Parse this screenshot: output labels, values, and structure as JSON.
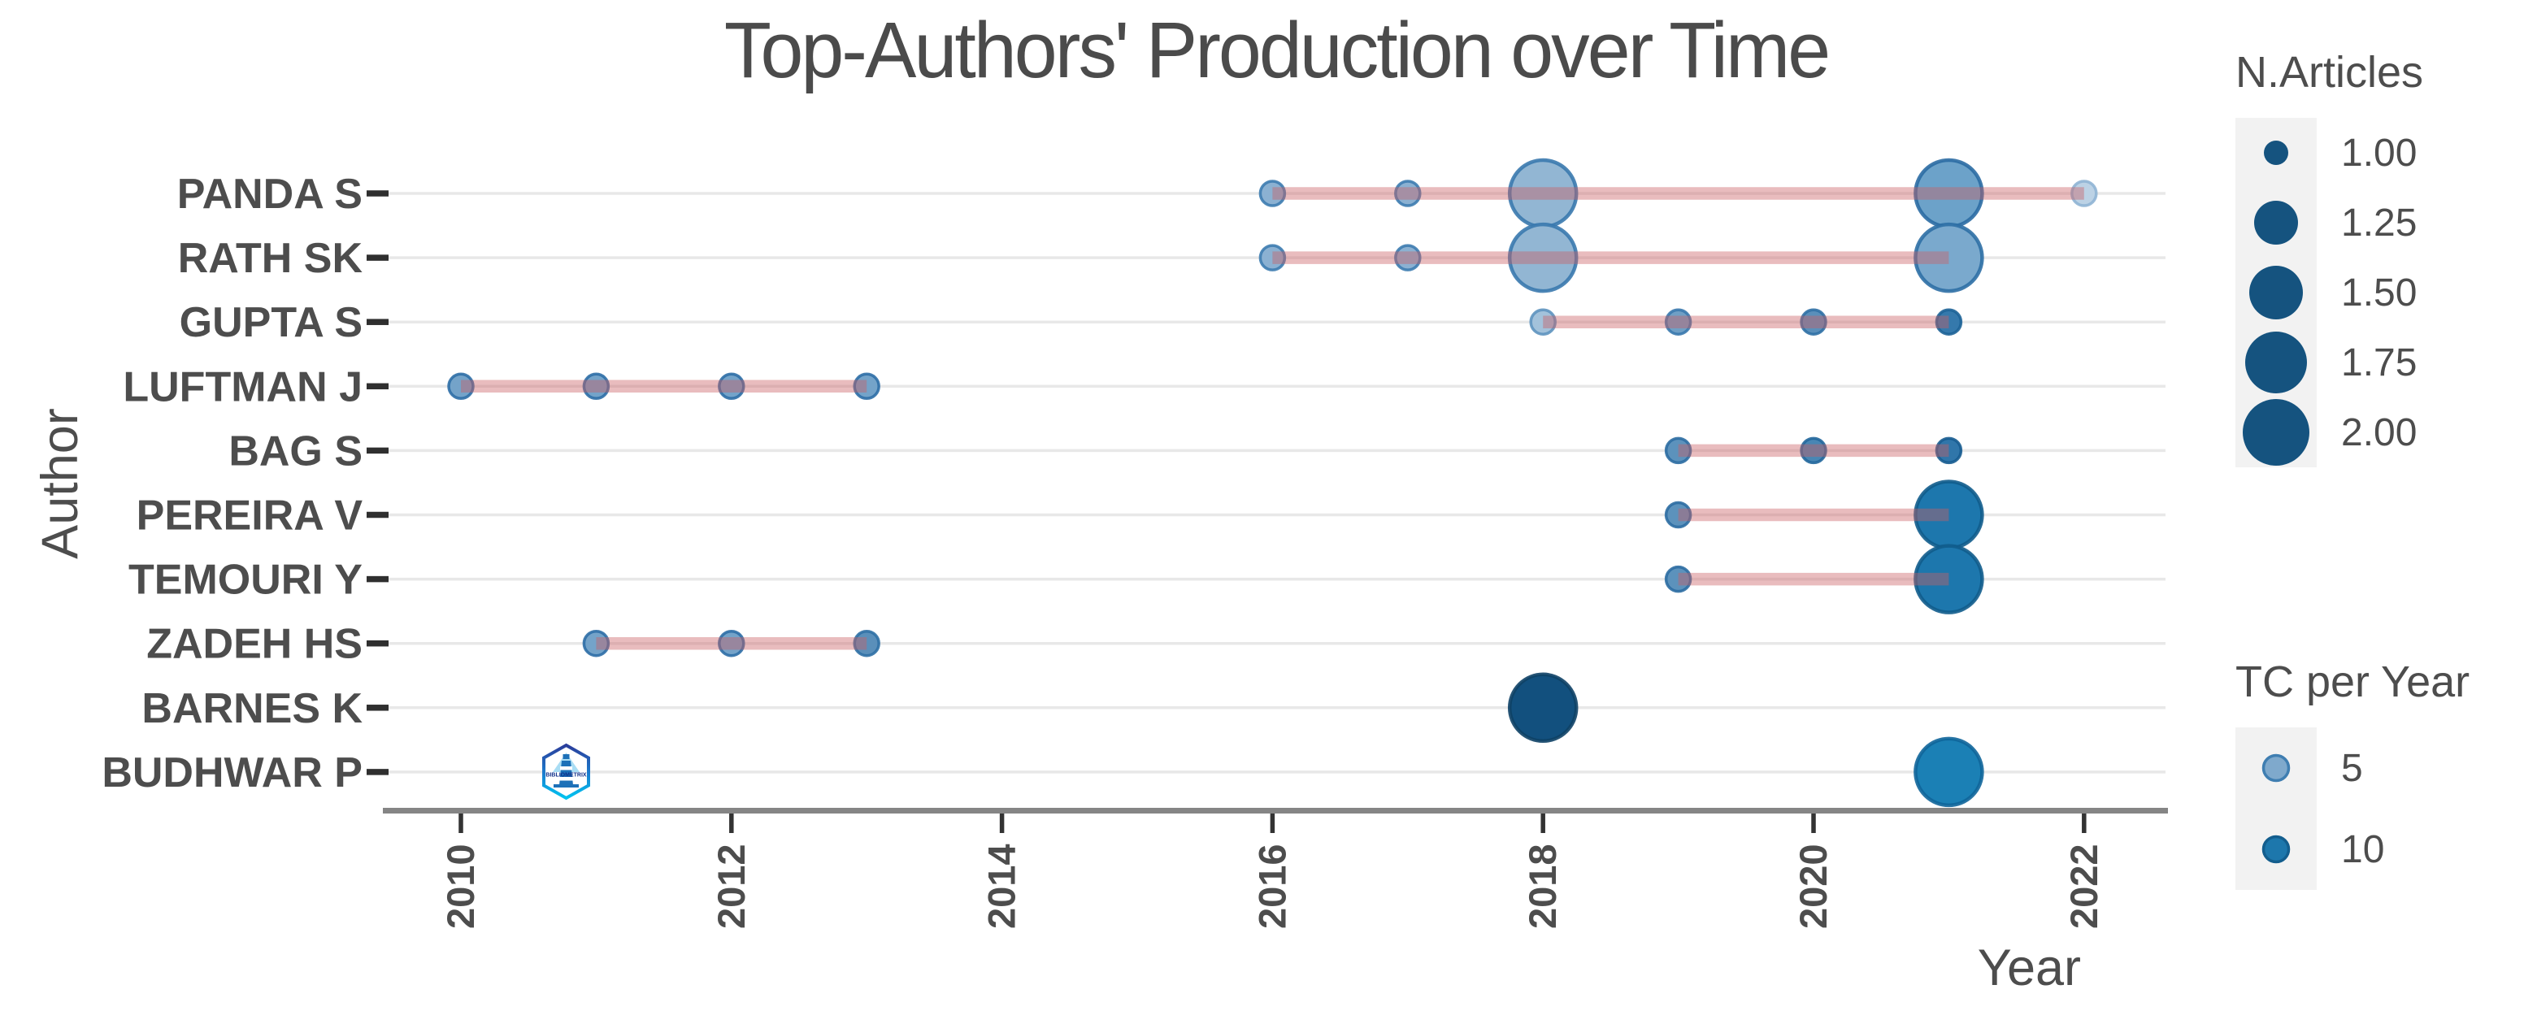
{
  "chart_data": {
    "type": "scatter",
    "title": "Top-Authors' Production over Time",
    "xlabel": "Year",
    "ylabel": "Author",
    "x_ticks": [
      "2010",
      "2012",
      "2014",
      "2016",
      "2018",
      "2020",
      "2022"
    ],
    "x_tick_years": [
      2010,
      2012,
      2014,
      2016,
      2018,
      2020,
      2022
    ],
    "x_range": [
      2009.5,
      2022.6
    ],
    "grid": "horizontal-only",
    "line_color": "rgba(202,96,101,0.42)",
    "text_color": "#4d4d4d",
    "grid_color": "#e8e8e8",
    "axis_line_color": "#858585",
    "tick_color": "#333333",
    "authors": [
      {
        "name": "PANDA S",
        "line": {
          "from": 2016,
          "to": 2022
        },
        "points": [
          {
            "year": 2016,
            "articles": 1,
            "fill": "#8bb1d2",
            "stroke": "#3d7cb0"
          },
          {
            "year": 2017,
            "articles": 1,
            "fill": "#8bb1d2",
            "stroke": "#3d7cb0"
          },
          {
            "year": 2018,
            "articles": 2,
            "fill": "#92b6d3",
            "stroke": "#3a79ae"
          },
          {
            "year": 2021,
            "articles": 2,
            "fill": "#6ca2c9",
            "stroke": "#2b6ca3"
          },
          {
            "year": 2022,
            "articles": 1,
            "fill": "#bcd2e5",
            "stroke": "#8fb4d4"
          }
        ]
      },
      {
        "name": "RATH SK",
        "line": {
          "from": 2016,
          "to": 2021
        },
        "points": [
          {
            "year": 2016,
            "articles": 1,
            "fill": "#8bb1d2",
            "stroke": "#3d7cb0"
          },
          {
            "year": 2017,
            "articles": 1,
            "fill": "#8bb1d2",
            "stroke": "#3d7cb0"
          },
          {
            "year": 2018,
            "articles": 2,
            "fill": "#92b6d3",
            "stroke": "#3a79ae"
          },
          {
            "year": 2021,
            "articles": 2,
            "fill": "#7aa9cd",
            "stroke": "#2e6fa5"
          }
        ]
      },
      {
        "name": "GUPTA S",
        "line": {
          "from": 2018,
          "to": 2021
        },
        "points": [
          {
            "year": 2018,
            "articles": 1,
            "fill": "#a3c2db",
            "stroke": "#5e94bf"
          },
          {
            "year": 2019,
            "articles": 1,
            "fill": "#6f9fc5",
            "stroke": "#3878ad"
          },
          {
            "year": 2020,
            "articles": 1,
            "fill": "#5a8fba",
            "stroke": "#2f70a5"
          },
          {
            "year": 2021,
            "articles": 1,
            "fill": "#3579ac",
            "stroke": "#1d6397"
          }
        ]
      },
      {
        "name": "LUFTMAN J",
        "line": {
          "from": 2010,
          "to": 2013
        },
        "points": [
          {
            "year": 2010,
            "articles": 1,
            "fill": "#74a3c9",
            "stroke": "#2d6ea6"
          },
          {
            "year": 2011,
            "articles": 1,
            "fill": "#74a3c9",
            "stroke": "#2d6ea6"
          },
          {
            "year": 2012,
            "articles": 1,
            "fill": "#74a3c9",
            "stroke": "#2d6ea6"
          },
          {
            "year": 2013,
            "articles": 1,
            "fill": "#74a3c9",
            "stroke": "#2d6ea6"
          }
        ]
      },
      {
        "name": "BAG S",
        "line": {
          "from": 2019,
          "to": 2021
        },
        "points": [
          {
            "year": 2019,
            "articles": 1,
            "fill": "#5c92bc",
            "stroke": "#2c6da2"
          },
          {
            "year": 2020,
            "articles": 1,
            "fill": "#4886b4",
            "stroke": "#22679c"
          },
          {
            "year": 2021,
            "articles": 1,
            "fill": "#3076aa",
            "stroke": "#175c90"
          }
        ]
      },
      {
        "name": "PEREIRA V",
        "line": {
          "from": 2019,
          "to": 2021
        },
        "points": [
          {
            "year": 2019,
            "articles": 1,
            "fill": "#5c92bc",
            "stroke": "#2c6da2"
          },
          {
            "year": 2021,
            "articles": 2,
            "fill": "#1d77ad",
            "stroke": "#115c8c"
          }
        ]
      },
      {
        "name": "TEMOURI Y",
        "line": {
          "from": 2019,
          "to": 2021
        },
        "points": [
          {
            "year": 2019,
            "articles": 1,
            "fill": "#5c92bc",
            "stroke": "#2c6da2"
          },
          {
            "year": 2021,
            "articles": 2,
            "fill": "#1d77ad",
            "stroke": "#115c8c"
          }
        ]
      },
      {
        "name": "ZADEH HS",
        "line": {
          "from": 2011,
          "to": 2013
        },
        "points": [
          {
            "year": 2011,
            "articles": 1,
            "fill": "#74a3c9",
            "stroke": "#2d6ea6"
          },
          {
            "year": 2012,
            "articles": 1,
            "fill": "#74a3c9",
            "stroke": "#2d6ea6"
          },
          {
            "year": 2013,
            "articles": 1,
            "fill": "#5a8fba",
            "stroke": "#2f70a5"
          }
        ]
      },
      {
        "name": "BARNES K",
        "line": null,
        "points": [
          {
            "year": 2018,
            "articles": 2,
            "fill": "#12507e",
            "stroke": "#0e4166"
          }
        ]
      },
      {
        "name": "BUDHWAR P",
        "line": null,
        "points": [
          {
            "year": 2021,
            "articles": 2,
            "fill": "#1b80b5",
            "stroke": "#0f659a"
          }
        ]
      }
    ],
    "legend_size": {
      "title": "N.Articles",
      "dot_color": "#15537f",
      "entries": [
        {
          "label": "1.00",
          "r": 15
        },
        {
          "label": "1.25",
          "r": 27
        },
        {
          "label": "1.50",
          "r": 33
        },
        {
          "label": "1.75",
          "r": 38
        },
        {
          "label": "2.00",
          "r": 41
        }
      ]
    },
    "legend_color": {
      "title": "TC per Year",
      "entries": [
        {
          "label": "5",
          "fill": "#7fa9cc",
          "stroke": "#3f7eb1"
        },
        {
          "label": "10",
          "fill": "#1d77ac",
          "stroke": "#135e8e"
        }
      ]
    },
    "watermark": "BIBLIOMETRIX"
  }
}
